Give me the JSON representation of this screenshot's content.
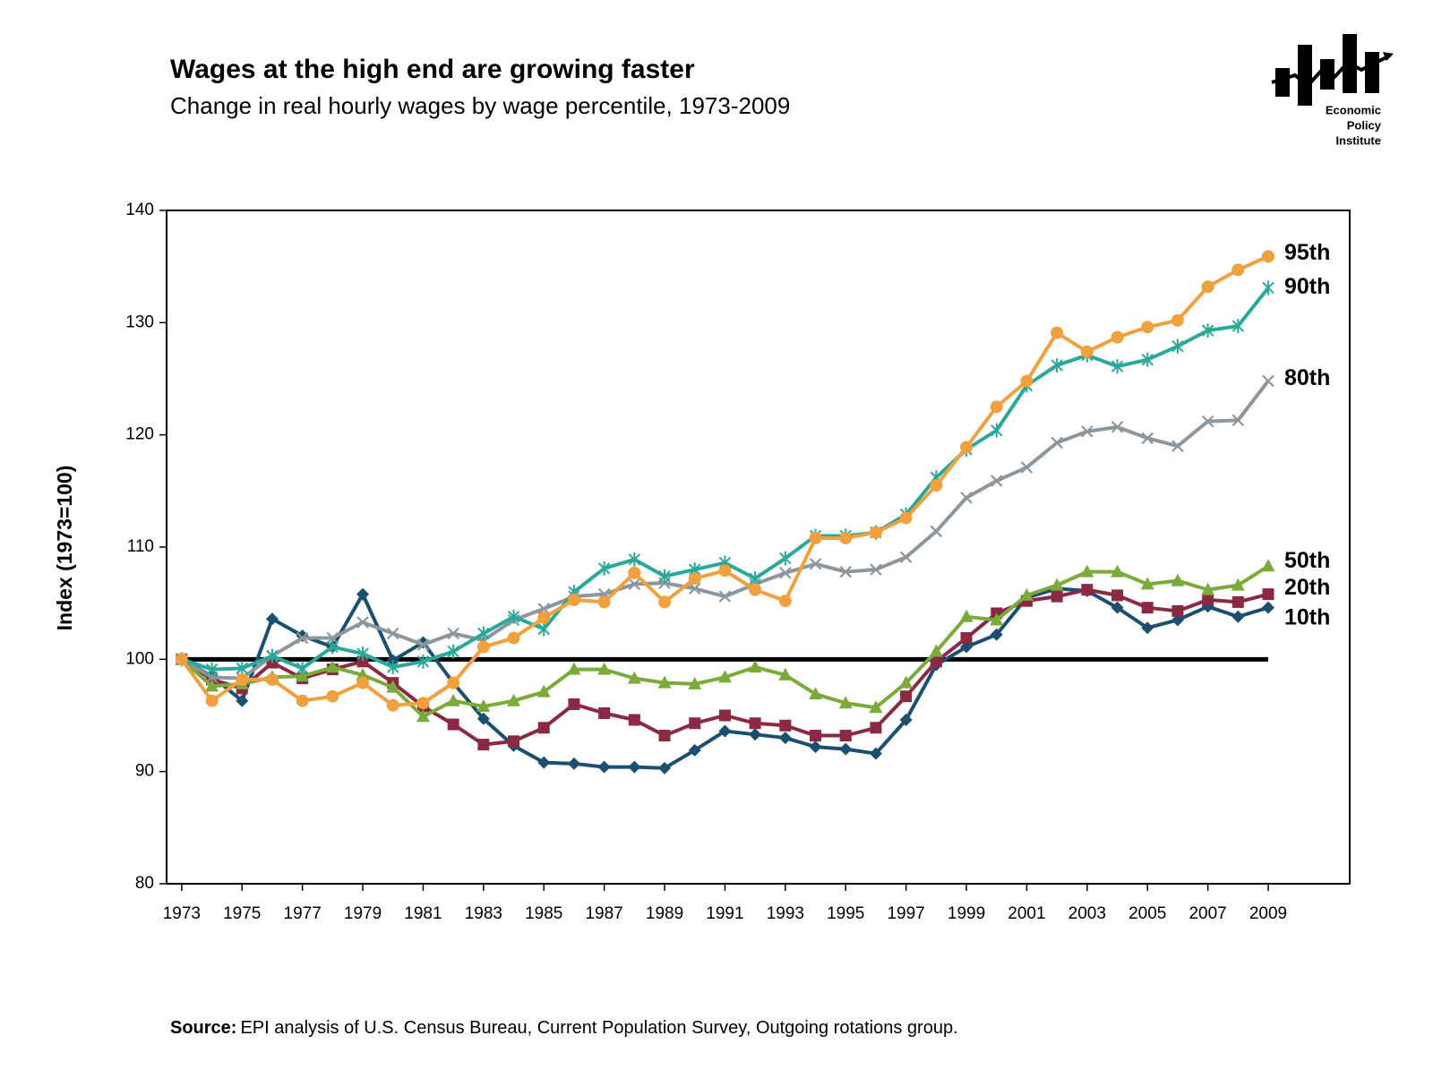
{
  "chart_data": {
    "type": "line",
    "title": "Wages at the high end are growing faster",
    "subtitle": "Change in real hourly wages by wage percentile, 1973-2009",
    "y_label": "Index (1973=100)",
    "x": [
      1973,
      1974,
      1975,
      1976,
      1977,
      1978,
      1979,
      1980,
      1981,
      1982,
      1983,
      1984,
      1985,
      1986,
      1987,
      1988,
      1989,
      1990,
      1991,
      1992,
      1993,
      1994,
      1995,
      1996,
      1997,
      1998,
      1999,
      2000,
      2001,
      2002,
      2003,
      2004,
      2005,
      2006,
      2007,
      2008,
      2009
    ],
    "series": [
      {
        "name": "10th",
        "color": "#1b4f72",
        "marker": "diamond",
        "values": [
          100,
          98.5,
          96.3,
          103.6,
          102.1,
          101.1,
          105.8,
          99.9,
          101.5,
          97.9,
          94.7,
          92.3,
          90.8,
          90.7,
          90.4,
          90.4,
          90.3,
          91.9,
          93.6,
          93.3,
          93.0,
          92.2,
          92.0,
          91.6,
          94.6,
          99.5,
          101.1,
          102.2,
          105.5,
          106.3,
          106.1,
          104.6,
          102.8,
          103.5,
          104.7,
          103.8,
          104.6
        ]
      },
      {
        "name": "20th",
        "color": "#8b2942",
        "marker": "square",
        "values": [
          100,
          98.2,
          97.4,
          99.7,
          98.3,
          99.1,
          99.8,
          97.9,
          95.8,
          94.2,
          92.4,
          92.7,
          93.9,
          96.0,
          95.2,
          94.6,
          93.2,
          94.3,
          95.0,
          94.3,
          94.1,
          93.2,
          93.2,
          93.9,
          96.7,
          99.8,
          101.9,
          104.1,
          105.2,
          105.6,
          106.2,
          105.7,
          104.6,
          104.3,
          105.3,
          105.1,
          105.8
        ]
      },
      {
        "name": "50th",
        "color": "#7aab3a",
        "marker": "triangle",
        "values": [
          100,
          97.6,
          97.8,
          98.4,
          98.5,
          99.3,
          98.6,
          97.5,
          94.9,
          96.3,
          95.8,
          96.3,
          97.1,
          99.1,
          99.1,
          98.3,
          97.9,
          97.8,
          98.4,
          99.3,
          98.6,
          96.9,
          96.1,
          95.7,
          97.9,
          100.7,
          103.8,
          103.5,
          105.7,
          106.6,
          107.8,
          107.8,
          106.7,
          107.0,
          106.2,
          106.6,
          108.3
        ]
      },
      {
        "name": "80th",
        "color": "#8c969e",
        "marker": "x",
        "values": [
          100,
          98.4,
          98.3,
          100.3,
          101.9,
          101.9,
          103.3,
          102.3,
          101.3,
          102.3,
          101.7,
          103.5,
          104.5,
          105.6,
          105.8,
          106.7,
          106.8,
          106.3,
          105.6,
          106.7,
          107.7,
          108.5,
          107.8,
          108.0,
          109.1,
          111.4,
          114.4,
          115.9,
          117.1,
          119.3,
          120.3,
          120.7,
          119.7,
          119.0,
          121.2,
          121.3,
          124.8
        ]
      },
      {
        "name": "90th",
        "color": "#2aa89a",
        "marker": "asterisk",
        "values": [
          100,
          99.1,
          99.2,
          100.3,
          99.2,
          101.1,
          100.5,
          99.3,
          99.8,
          100.7,
          102.3,
          103.8,
          102.7,
          106.0,
          108.1,
          108.9,
          107.4,
          108.0,
          108.6,
          107.2,
          109.0,
          111.0,
          111.0,
          111.3,
          112.9,
          116.2,
          118.7,
          120.4,
          124.4,
          126.2,
          127.1,
          126.1,
          126.7,
          127.9,
          129.3,
          129.7,
          133.1
        ]
      },
      {
        "name": "95th",
        "color": "#f0a03c",
        "marker": "circle",
        "values": [
          100,
          96.3,
          98.2,
          98.2,
          96.3,
          96.7,
          97.9,
          95.9,
          96.1,
          97.9,
          101.1,
          101.9,
          103.7,
          105.3,
          105.1,
          107.7,
          105.1,
          107.2,
          107.9,
          106.2,
          105.2,
          110.8,
          110.8,
          111.3,
          112.6,
          115.5,
          118.9,
          122.5,
          124.8,
          129.1,
          127.4,
          128.7,
          129.6,
          130.2,
          133.2,
          134.7,
          135.9
        ]
      }
    ],
    "reference_line": 100,
    "xlim": [
      1972.5,
      2011.7
    ],
    "xticks": [
      1973,
      1975,
      1977,
      1979,
      1981,
      1983,
      1985,
      1987,
      1989,
      1991,
      1993,
      1995,
      1997,
      1999,
      2001,
      2003,
      2005,
      2007,
      2009
    ],
    "ylim": [
      80,
      140
    ],
    "yticks": [
      80,
      90,
      100,
      110,
      120,
      130,
      140
    ],
    "grid": false
  },
  "source": {
    "label": "Source:",
    "text": "EPI analysis of U.S. Census Bureau, Current Population Survey, Outgoing rotations group."
  },
  "logo": {
    "lines": [
      "Economic",
      "Policy",
      "Institute"
    ]
  }
}
